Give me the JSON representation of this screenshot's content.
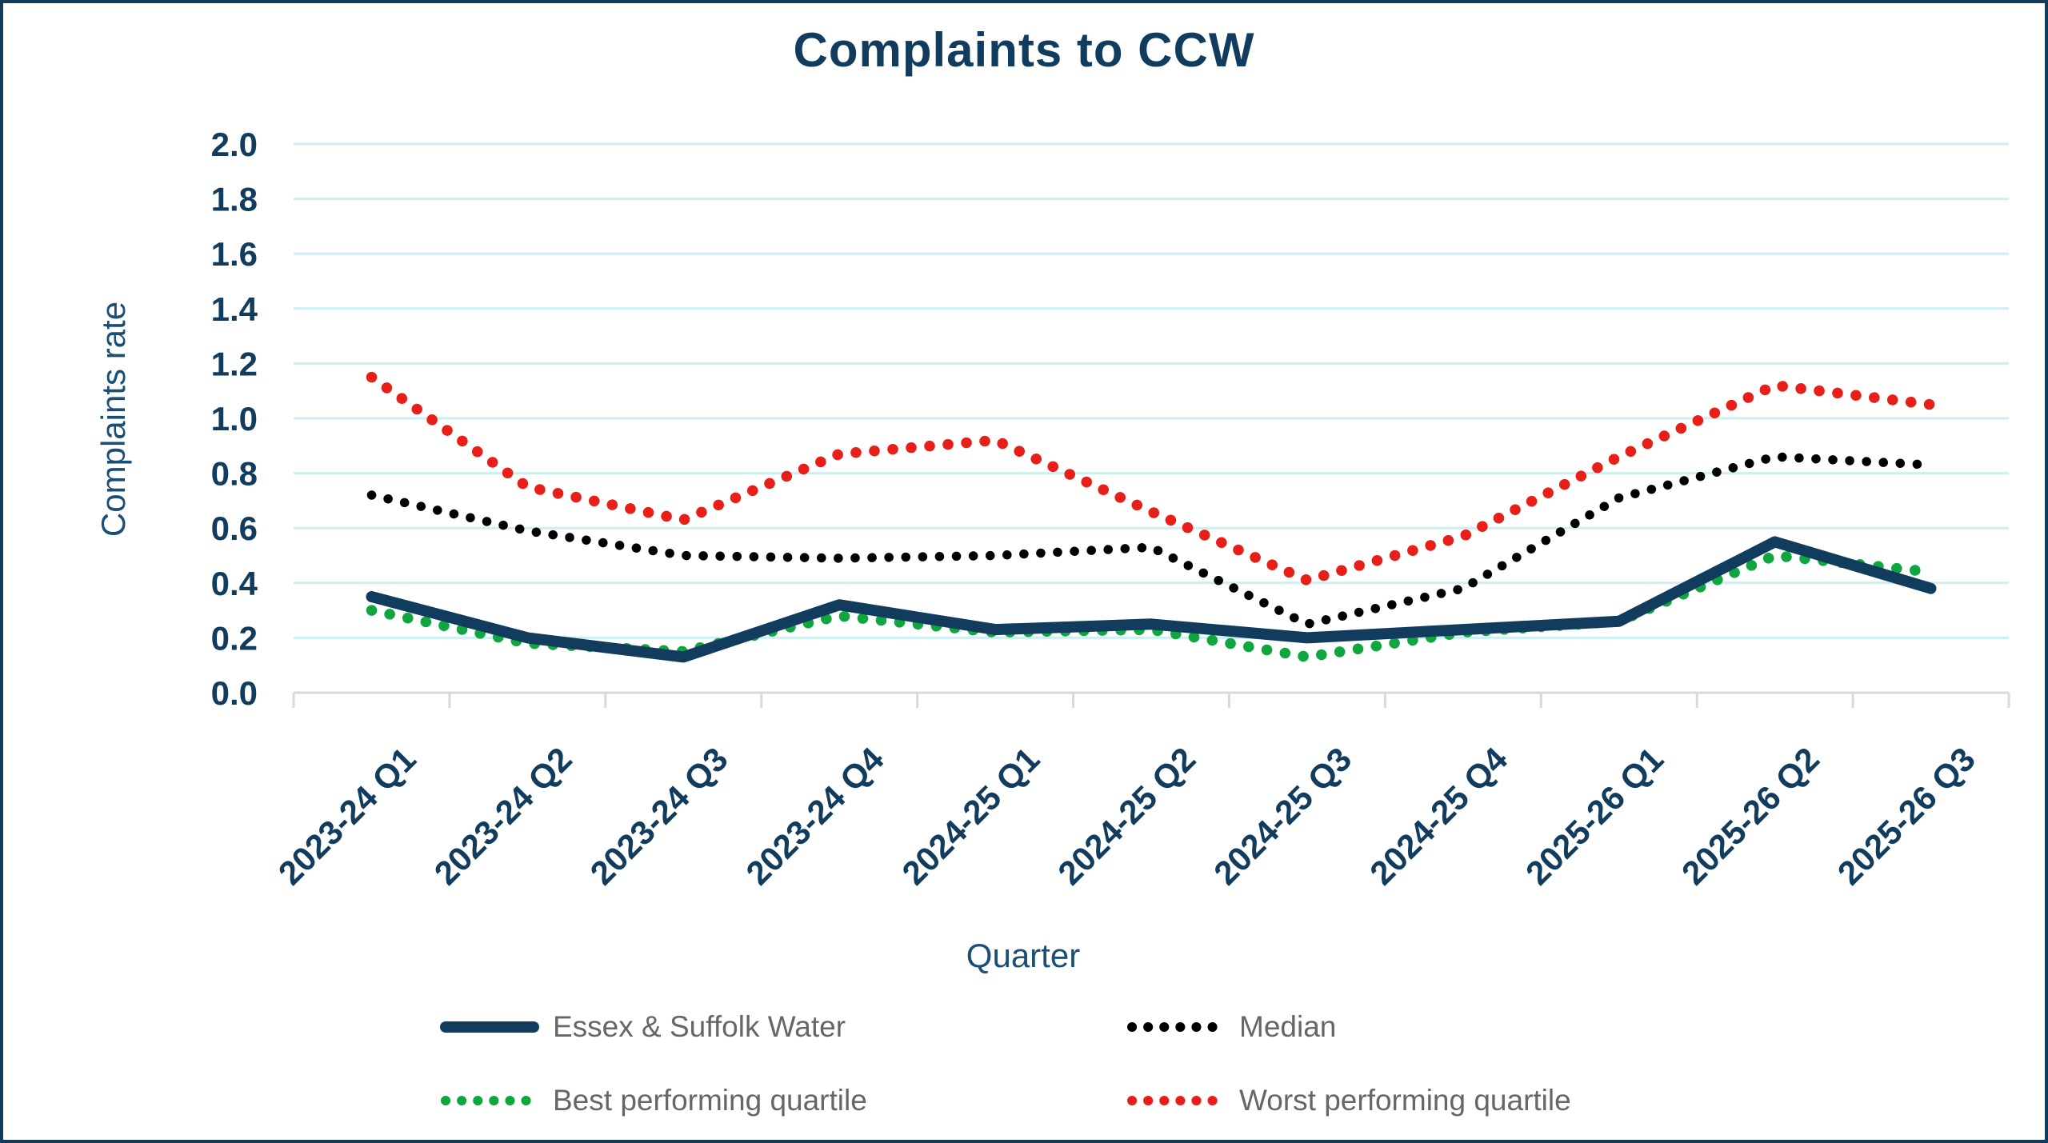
{
  "chart_data": {
    "type": "line",
    "title": "Complaints to CCW",
    "xlabel": "Quarter",
    "ylabel": "Complaints rate",
    "ylim": [
      0.0,
      2.0
    ],
    "ytick_step": 0.2,
    "ytick_labels": [
      "0.0",
      "0.2",
      "0.4",
      "0.6",
      "0.8",
      "1.0",
      "1.2",
      "1.4",
      "1.6",
      "1.8",
      "2.0"
    ],
    "grid": "horizontal",
    "legend_position": "bottom",
    "categories": [
      "2023-24 Q1",
      "2023-24 Q2",
      "2023-24 Q3",
      "2023-24 Q4",
      "2024-25 Q1",
      "2024-25 Q2",
      "2024-25 Q3",
      "2024-25 Q4",
      "2025-26 Q1",
      "2025-26 Q2",
      "2025-26 Q3"
    ],
    "series": [
      {
        "name": "Essex & Suffolk Water",
        "style": "solid",
        "color": "#113C5E",
        "values": [
          0.35,
          0.2,
          0.13,
          0.32,
          0.23,
          0.25,
          0.2,
          0.23,
          0.26,
          0.55,
          0.38
        ]
      },
      {
        "name": "Median",
        "style": "dotted",
        "color": "#000000",
        "values": [
          0.72,
          0.59,
          0.5,
          0.49,
          0.5,
          0.53,
          0.25,
          0.38,
          0.71,
          0.86,
          0.83
        ]
      },
      {
        "name": "Best performing quartile",
        "style": "dotted",
        "color": "#10A63F",
        "values": [
          0.3,
          0.18,
          0.15,
          0.28,
          0.22,
          0.23,
          0.13,
          0.22,
          0.26,
          0.5,
          0.44
        ]
      },
      {
        "name": "Worst performing quartile",
        "style": "dotted",
        "color": "#E81E19",
        "values": [
          1.15,
          0.75,
          0.63,
          0.87,
          0.92,
          0.66,
          0.41,
          0.57,
          0.86,
          1.12,
          1.05
        ]
      }
    ]
  },
  "colors": {
    "title_text": "#113C5E",
    "axis_text": "#113C5E",
    "legend_text": "#666666",
    "gridline": "#CDEEF2",
    "axis_line": "#D9D9D9",
    "frame_border": "#113C5E",
    "background": "#FFFFFF"
  }
}
